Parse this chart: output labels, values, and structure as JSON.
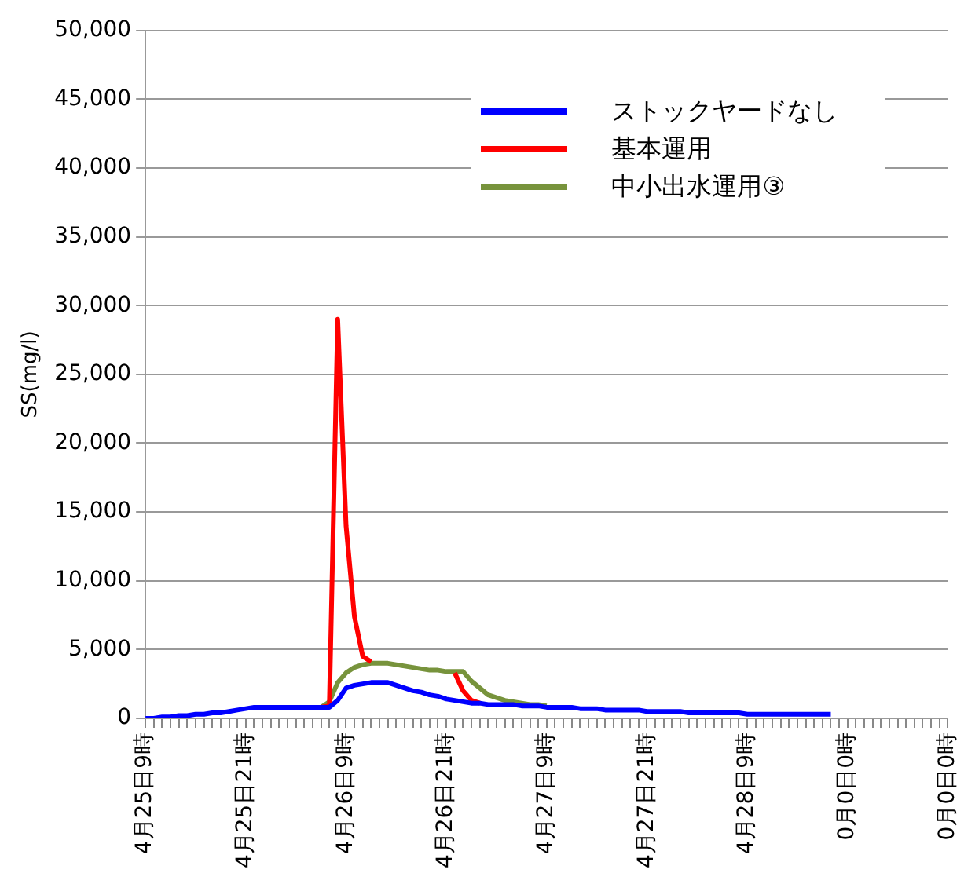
{
  "chart_data": {
    "type": "line",
    "ylabel": "SS(mg/l)",
    "categories": [
      "4月25日9時",
      null,
      null,
      null,
      null,
      null,
      null,
      null,
      null,
      null,
      null,
      null,
      "4月25日21時",
      null,
      null,
      null,
      null,
      null,
      null,
      null,
      null,
      null,
      null,
      null,
      "4月26日9時",
      null,
      null,
      null,
      null,
      null,
      null,
      null,
      null,
      null,
      null,
      null,
      "4月26日21時",
      null,
      null,
      null,
      null,
      null,
      null,
      null,
      null,
      null,
      null,
      null,
      "4月27日9時",
      null,
      null,
      null,
      null,
      null,
      null,
      null,
      null,
      null,
      null,
      null,
      "4月27日21時",
      null,
      null,
      null,
      null,
      null,
      null,
      null,
      null,
      null,
      null,
      null,
      "4月28日9時",
      null,
      null,
      null,
      null,
      null,
      null,
      null,
      null,
      null,
      null,
      null,
      "0月0日0時",
      null,
      null,
      null,
      null,
      null,
      null,
      null,
      null,
      null,
      null,
      null,
      "0月0日0時"
    ],
    "series": [
      {
        "name": "ストックヤードなし",
        "color": "#0000ff",
        "values": [
          0,
          0,
          100,
          100,
          200,
          200,
          300,
          300,
          400,
          400,
          500,
          600,
          700,
          800,
          800,
          800,
          800,
          800,
          800,
          800,
          800,
          800,
          800,
          1300,
          2200,
          2400,
          2500,
          2600,
          2600,
          2600,
          2400,
          2200,
          2000,
          1900,
          1700,
          1600,
          1400,
          1300,
          1200,
          1100,
          1100,
          1000,
          1000,
          1000,
          1000,
          900,
          900,
          900,
          800,
          800,
          800,
          800,
          700,
          700,
          700,
          600,
          600,
          600,
          600,
          600,
          500,
          500,
          500,
          500,
          500,
          400,
          400,
          400,
          400,
          400,
          400,
          400,
          300,
          300,
          300,
          300,
          300,
          300,
          300,
          300,
          300,
          300,
          300,
          null,
          null,
          null,
          null,
          null,
          null,
          null,
          null,
          null,
          null,
          null,
          null,
          null,
          null
        ]
      },
      {
        "name": "基本運用",
        "color": "#ff0000",
        "values": [
          null,
          null,
          null,
          null,
          null,
          null,
          null,
          null,
          null,
          null,
          null,
          null,
          null,
          null,
          null,
          null,
          null,
          null,
          null,
          null,
          null,
          800,
          900,
          29000,
          14000,
          7400,
          4500,
          4100,
          null,
          null,
          null,
          null,
          null,
          null,
          null,
          null,
          null,
          3300,
          2000,
          1300,
          1100,
          null,
          null,
          null,
          null,
          null,
          null,
          null,
          null,
          null,
          null,
          null,
          null,
          null,
          null,
          null,
          null,
          null,
          null,
          null,
          null,
          null,
          null,
          null,
          null,
          null,
          null,
          null,
          null,
          null,
          null,
          null,
          null,
          null,
          null,
          null,
          null,
          null,
          null,
          null,
          null,
          null,
          null,
          null,
          null,
          null,
          null,
          null,
          null,
          null,
          null,
          null,
          null,
          null,
          null,
          null,
          null
        ]
      },
      {
        "name": "中小出水運用③",
        "color": "#77933c",
        "values": [
          null,
          null,
          null,
          null,
          null,
          null,
          null,
          null,
          null,
          null,
          null,
          null,
          null,
          null,
          null,
          null,
          null,
          null,
          null,
          null,
          null,
          800,
          1200,
          2600,
          3300,
          3700,
          3900,
          4000,
          4000,
          4000,
          3900,
          3800,
          3700,
          3600,
          3500,
          3500,
          3400,
          3400,
          3400,
          2700,
          2200,
          1700,
          1500,
          1300,
          1200,
          1100,
          1000,
          1000,
          900,
          null,
          null,
          null,
          null,
          null,
          null,
          null,
          null,
          null,
          null,
          null,
          null,
          null,
          null,
          null,
          null,
          null,
          null,
          null,
          null,
          null,
          null,
          null,
          null,
          null,
          null,
          null,
          null,
          null,
          null,
          null,
          null,
          null,
          null,
          null,
          null,
          null,
          null,
          null,
          null,
          null,
          null,
          null,
          null,
          null,
          null,
          null,
          null
        ]
      }
    ],
    "ylim": [
      0,
      50000
    ],
    "yticks": [
      0,
      {
        "value": 5000,
        "label": "5,000"
      },
      {
        "value": 10000,
        "label": "10,000"
      },
      {
        "value": 15000,
        "label": "15,000"
      },
      {
        "value": 20000,
        "label": "20,000"
      },
      {
        "value": 25000,
        "label": "25,000"
      },
      {
        "value": 30000,
        "label": "30,000"
      },
      {
        "value": 35000,
        "label": "35,000"
      },
      {
        "value": 40000,
        "label": "40,000"
      },
      {
        "value": 45000,
        "label": "45,000"
      },
      {
        "value": 50000,
        "label": "50,000"
      }
    ],
    "grid": "y",
    "legend": "top right"
  }
}
